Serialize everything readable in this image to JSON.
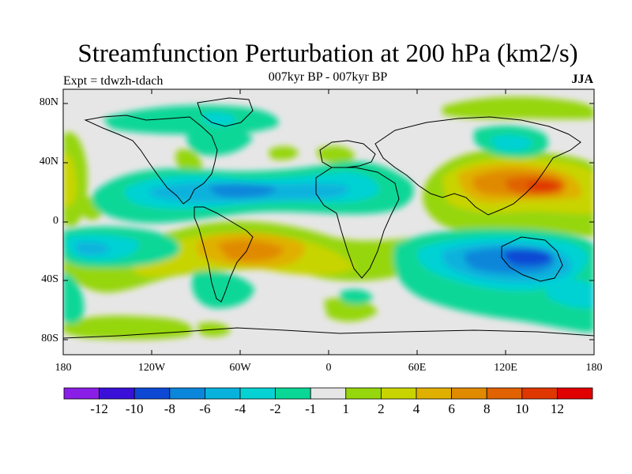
{
  "title": "Streamfunction Perturbation at 200 hPa (km2/s)",
  "subtitle": "007kyr BP - 007kyr BP",
  "experiment_label": "Expt = tdwzh-tdach",
  "season_label": "JJA",
  "lat_labels": [
    "80N",
    "40N",
    "0",
    "40S",
    "80S"
  ],
  "lon_labels": [
    "180",
    "120W",
    "60W",
    "0",
    "60E",
    "120E",
    "180"
  ],
  "colorbar": {
    "labels": [
      "-12",
      "-10",
      "-8",
      "-6",
      "-4",
      "-2",
      "-1",
      "1",
      "2",
      "4",
      "6",
      "8",
      "10",
      "12"
    ],
    "colors": [
      "#8a1ee6",
      "#3a10d8",
      "#0c48d4",
      "#0a86da",
      "#08b2dc",
      "#06d2d4",
      "#0ad796",
      "#e6e6e6",
      "#96d60c",
      "#c8d400",
      "#e0b000",
      "#e08a00",
      "#e06200",
      "#e03600",
      "#e00000"
    ]
  },
  "colors": {
    "land_outline": "#000000",
    "neutral": "#e6e6e6"
  }
}
